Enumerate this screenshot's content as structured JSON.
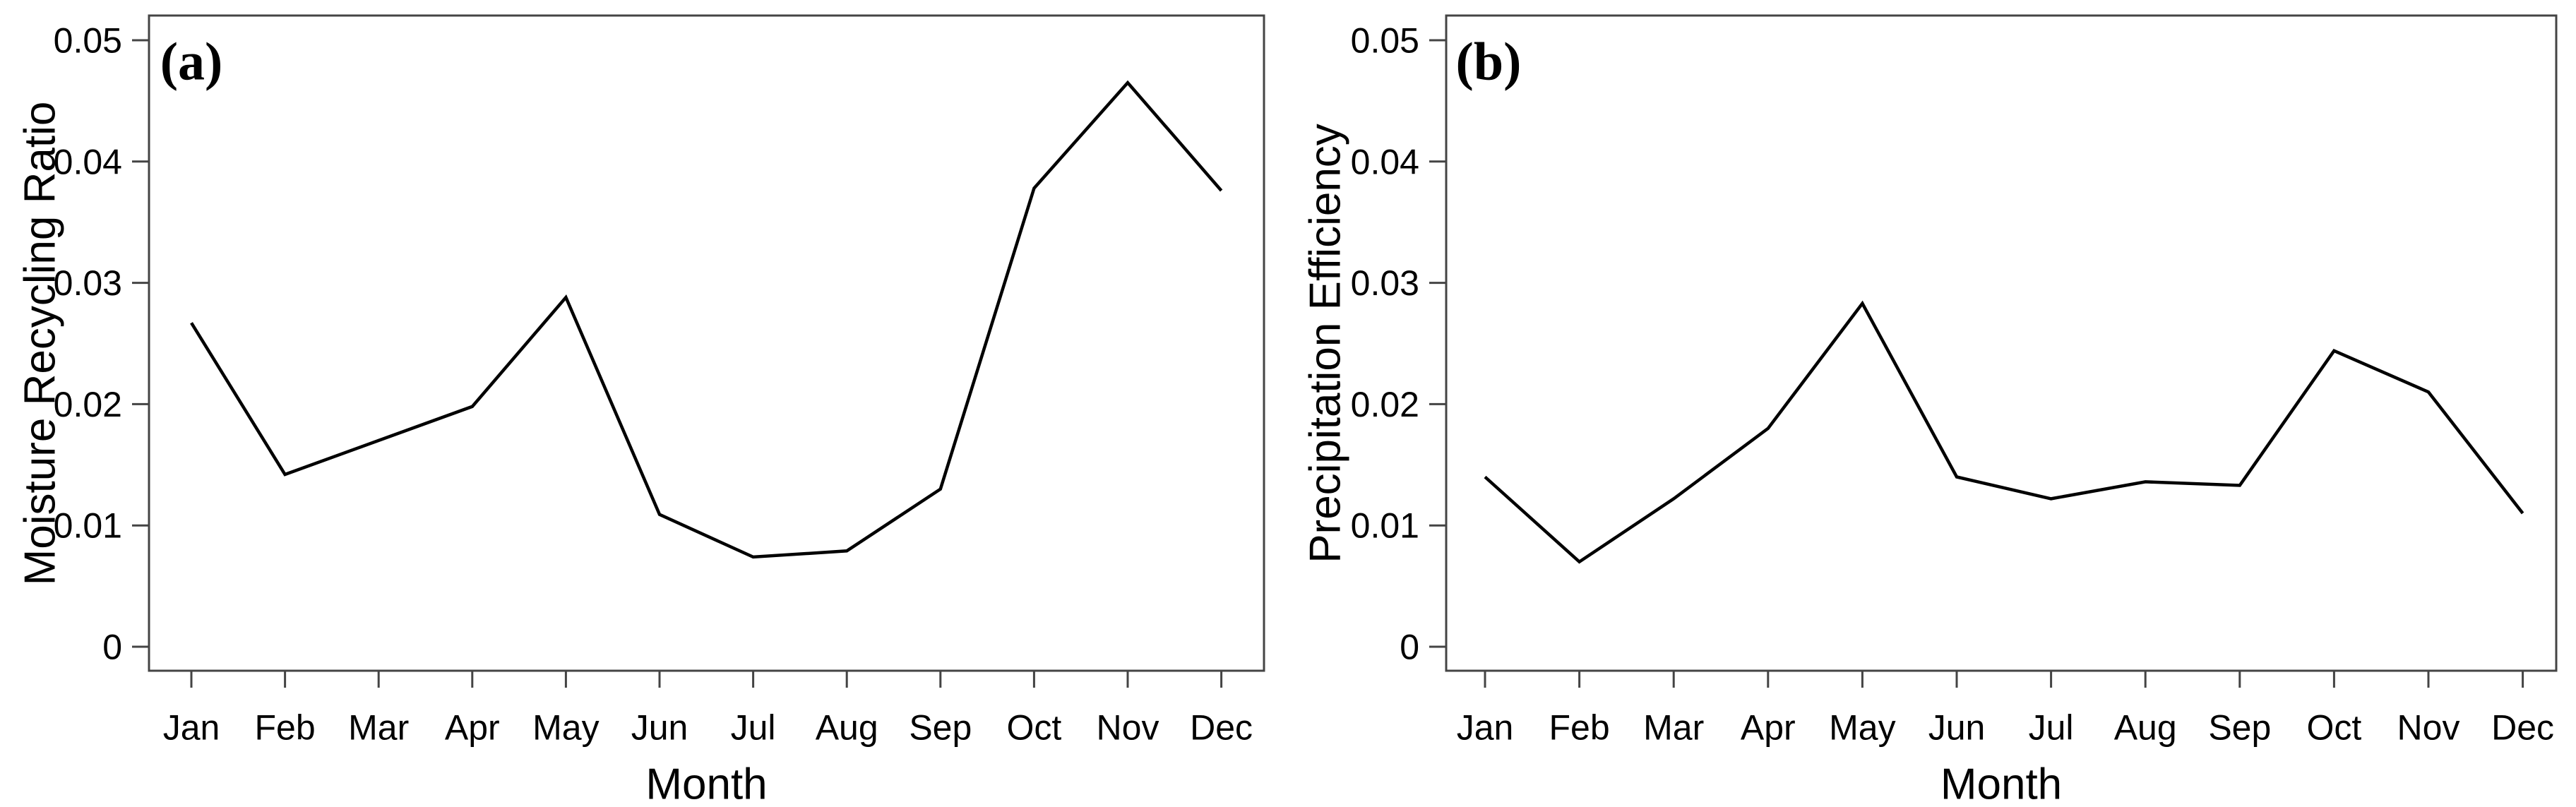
{
  "figure": {
    "background_color": "#ffffff",
    "data_line_color": "#000000",
    "axis_color": "#444444",
    "text_color": "#000000"
  },
  "chart_data": [
    {
      "type": "line",
      "panel_label": "(a)",
      "title": "",
      "xlabel": "Month",
      "ylabel": "Moisture Recycling Ratio",
      "categories": [
        "Jan",
        "Feb",
        "Mar",
        "Apr",
        "May",
        "Jun",
        "Jul",
        "Aug",
        "Sep",
        "Oct",
        "Nov",
        "Dec"
      ],
      "values": [
        0.0267,
        0.0142,
        0.017,
        0.0198,
        0.0288,
        0.0109,
        0.0074,
        0.0079,
        0.013,
        0.0378,
        0.0465,
        0.0376
      ],
      "ylim": [
        0,
        0.05
      ],
      "yticks": [
        0,
        0.01,
        0.02,
        0.03,
        0.04,
        0.05
      ],
      "ytick_labels": [
        "0",
        "0.01",
        "0.02",
        "0.03",
        "0.04",
        "0.05"
      ],
      "grid": false,
      "legend": "none"
    },
    {
      "type": "line",
      "panel_label": "(b)",
      "title": "",
      "xlabel": "Month",
      "ylabel": "Precipitation Efficiency",
      "categories": [
        "Jan",
        "Feb",
        "Mar",
        "Apr",
        "May",
        "Jun",
        "Jul",
        "Aug",
        "Sep",
        "Oct",
        "Nov",
        "Dec"
      ],
      "values": [
        0.014,
        0.007,
        0.0122,
        0.018,
        0.0283,
        0.014,
        0.0122,
        0.0136,
        0.0133,
        0.0244,
        0.021,
        0.011
      ],
      "ylim": [
        0,
        0.05
      ],
      "yticks": [
        0,
        0.01,
        0.02,
        0.03,
        0.04,
        0.05
      ],
      "ytick_labels": [
        "0",
        "0.01",
        "0.02",
        "0.03",
        "0.04",
        "0.05"
      ],
      "grid": false,
      "legend": "none"
    }
  ]
}
